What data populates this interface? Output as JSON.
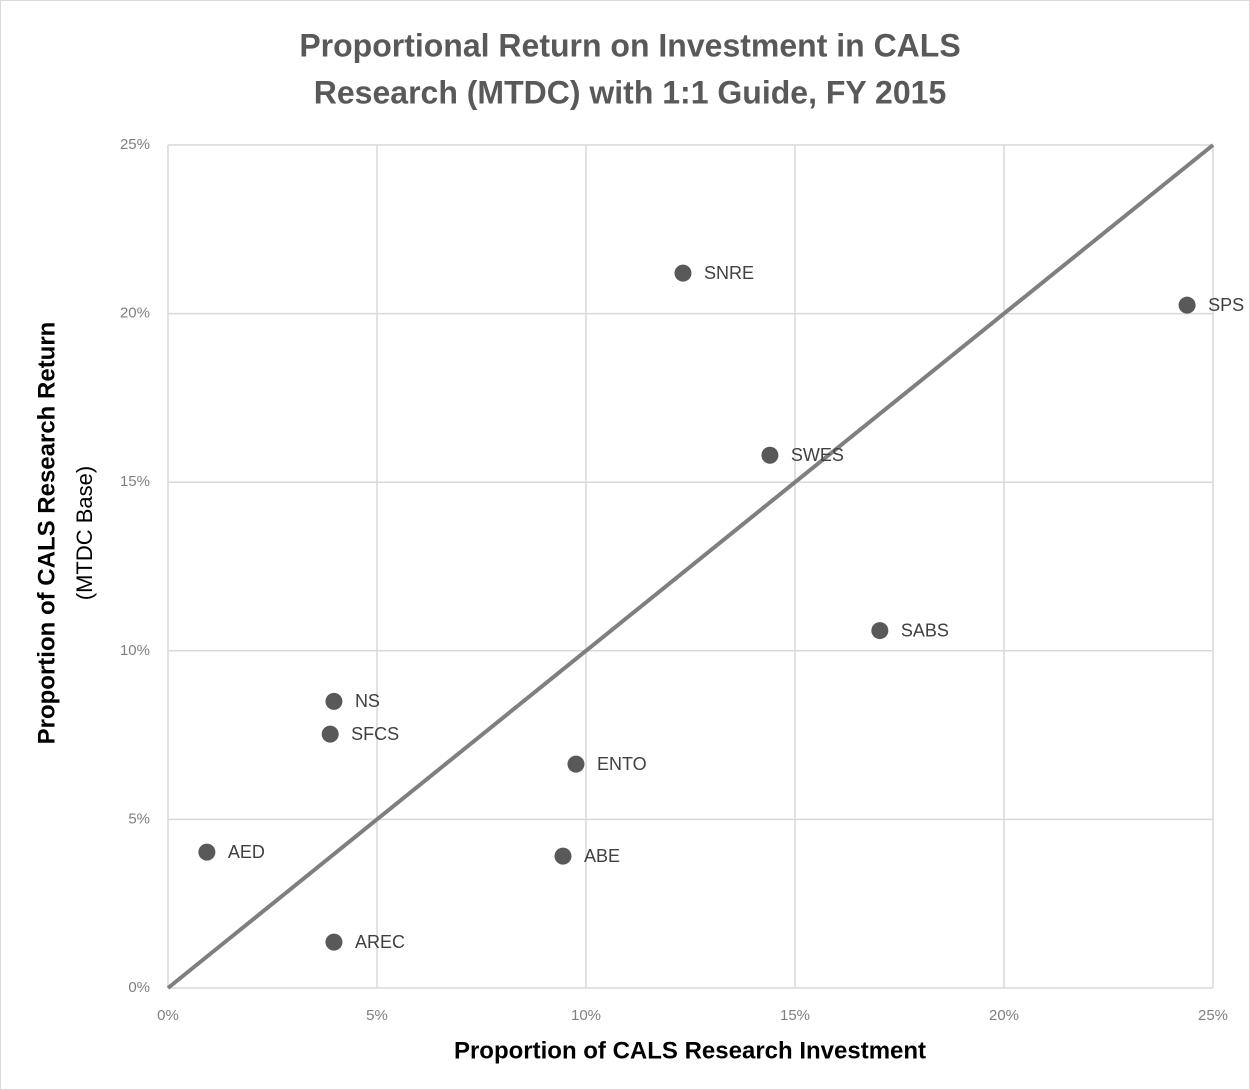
{
  "chart_data": {
    "type": "scatter",
    "title": [
      "Proportional Return on Investment in CALS",
      "Research (MTDC) with 1:1 Guide, FY 2015"
    ],
    "x_label": "Proportion of CALS Research Investment",
    "y_label": [
      "Proportion of CALS Research Return",
      "(MTDC Base)"
    ],
    "labels": [
      "SNRE",
      "SPS",
      "SWES",
      "SABS",
      "NS",
      "SFCS",
      "ENTO",
      "AED",
      "ABE",
      "AREC"
    ],
    "x": [
      12.32,
      24.38,
      14.4,
      17.03,
      3.97,
      3.88,
      9.76,
      0.93,
      9.45,
      3.97
    ],
    "values": [
      21.2,
      20.25,
      15.8,
      10.6,
      8.5,
      7.53,
      6.64,
      4.03,
      3.91,
      1.36
    ],
    "color": "#595959",
    "guide_line": {
      "x": [
        0,
        25
      ],
      "y": [
        0,
        25
      ],
      "color": "#7f7f7f"
    },
    "xlim": [
      0,
      25
    ],
    "ylim": [
      0,
      25
    ],
    "xticks": [
      {
        "value": 0,
        "label": "0%"
      },
      {
        "value": 5,
        "label": "5%"
      },
      {
        "value": 10,
        "label": "10%"
      },
      {
        "value": 15,
        "label": "15%"
      },
      {
        "value": 20,
        "label": "20%"
      },
      {
        "value": 25,
        "label": "25%"
      }
    ],
    "yticks": [
      {
        "value": 0,
        "label": "0%"
      },
      {
        "value": 5,
        "label": "5%"
      },
      {
        "value": 10,
        "label": "10%"
      },
      {
        "value": 15,
        "label": "15%"
      },
      {
        "value": 20,
        "label": "20%"
      },
      {
        "value": 25,
        "label": "25%"
      }
    ],
    "grid": true
  }
}
